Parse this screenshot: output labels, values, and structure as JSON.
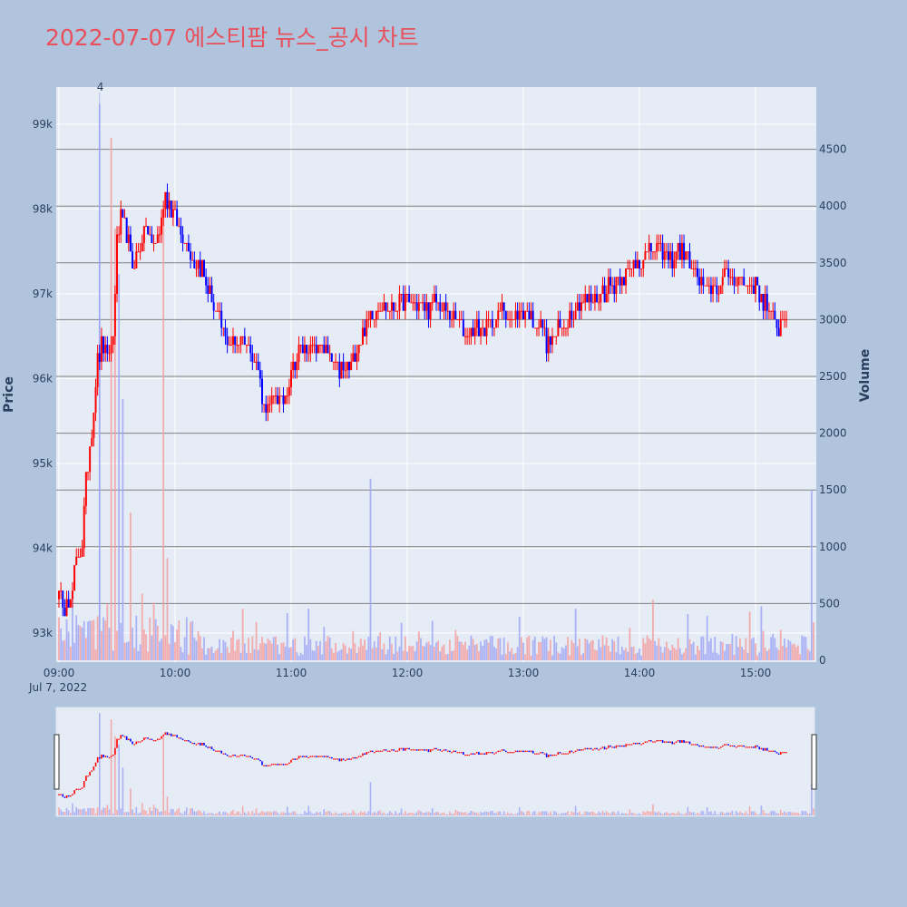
{
  "title": "2022-07-07 에스티팜 뉴스_공시 차트",
  "colors": {
    "background": "#b0c4de",
    "plot_background": "#e5ecf6",
    "up": "#ff0000",
    "down": "#0000ff",
    "title": "#e8505b",
    "grid": "#ffffff",
    "volume_grid": "#808080"
  },
  "chart_data": {
    "type": "candlestick",
    "x_start": "09:00",
    "x_end": "15:30",
    "x_ticks": [
      "09:00",
      "10:00",
      "11:00",
      "12:00",
      "13:00",
      "14:00",
      "15:00"
    ],
    "x_date_label": "Jul 7, 2022",
    "yaxis_price": {
      "title": "Price",
      "range": [
        92700,
        99400
      ],
      "ticks": [
        93000,
        94000,
        95000,
        96000,
        97000,
        98000,
        99000
      ],
      "tick_labels": [
        "93k",
        "94k",
        "95k",
        "96k",
        "97k",
        "98k",
        "99k"
      ]
    },
    "yaxis_volume": {
      "title": "Volume",
      "range": [
        0,
        5000
      ],
      "ticks": [
        0,
        500,
        1000,
        1500,
        2000,
        2500,
        3000,
        3500,
        4000,
        4500
      ],
      "tick_labels": [
        "0",
        "500",
        "1000",
        "1500",
        "2000",
        "2500",
        "3000",
        "3500",
        "4000",
        "4500"
      ]
    },
    "annotation": {
      "text": "4",
      "time": "09:21"
    },
    "price_path": [
      [
        "09:00",
        93600
      ],
      [
        "09:02",
        93200
      ],
      [
        "09:04",
        93500
      ],
      [
        "09:06",
        93300
      ],
      [
        "09:08",
        93700
      ],
      [
        "09:10",
        93900
      ],
      [
        "09:12",
        94100
      ],
      [
        "09:14",
        94800
      ],
      [
        "09:16",
        95200
      ],
      [
        "09:18",
        95700
      ],
      [
        "09:20",
        96200
      ],
      [
        "09:22",
        96400
      ],
      [
        "09:25",
        96200
      ],
      [
        "09:28",
        96500
      ],
      [
        "09:30",
        97600
      ],
      [
        "09:32",
        97900
      ],
      [
        "09:35",
        97700
      ],
      [
        "09:38",
        97300
      ],
      [
        "09:42",
        97600
      ],
      [
        "09:45",
        97800
      ],
      [
        "09:48",
        97600
      ],
      [
        "09:52",
        97700
      ],
      [
        "09:55",
        98200
      ],
      [
        "09:58",
        98000
      ],
      [
        "10:02",
        97800
      ],
      [
        "10:06",
        97600
      ],
      [
        "10:10",
        97400
      ],
      [
        "10:14",
        97300
      ],
      [
        "10:18",
        97000
      ],
      [
        "10:22",
        96700
      ],
      [
        "10:26",
        96500
      ],
      [
        "10:30",
        96400
      ],
      [
        "10:34",
        96500
      ],
      [
        "10:38",
        96400
      ],
      [
        "10:42",
        96200
      ],
      [
        "10:46",
        95700
      ],
      [
        "10:48",
        95600
      ],
      [
        "10:52",
        95800
      ],
      [
        "10:56",
        95700
      ],
      [
        "11:00",
        96100
      ],
      [
        "11:04",
        96300
      ],
      [
        "11:08",
        96400
      ],
      [
        "11:12",
        96300
      ],
      [
        "11:16",
        96400
      ],
      [
        "11:20",
        96200
      ],
      [
        "11:24",
        96100
      ],
      [
        "11:28",
        96100
      ],
      [
        "11:32",
        96200
      ],
      [
        "11:36",
        96500
      ],
      [
        "11:40",
        96700
      ],
      [
        "11:45",
        96900
      ],
      [
        "11:50",
        96800
      ],
      [
        "11:55",
        96900
      ],
      [
        "12:00",
        96900
      ],
      [
        "12:05",
        96900
      ],
      [
        "12:10",
        96800
      ],
      [
        "12:15",
        96900
      ],
      [
        "12:20",
        96800
      ],
      [
        "12:25",
        96700
      ],
      [
        "12:30",
        96500
      ],
      [
        "12:35",
        96600
      ],
      [
        "12:40",
        96600
      ],
      [
        "12:45",
        96700
      ],
      [
        "12:50",
        96800
      ],
      [
        "12:55",
        96700
      ],
      [
        "13:00",
        96800
      ],
      [
        "13:05",
        96700
      ],
      [
        "13:10",
        96600
      ],
      [
        "13:12",
        96400
      ],
      [
        "13:16",
        96500
      ],
      [
        "13:20",
        96600
      ],
      [
        "13:25",
        96800
      ],
      [
        "13:30",
        96900
      ],
      [
        "13:35",
        96900
      ],
      [
        "13:40",
        97000
      ],
      [
        "13:45",
        97100
      ],
      [
        "13:50",
        97200
      ],
      [
        "13:55",
        97300
      ],
      [
        "14:00",
        97400
      ],
      [
        "14:05",
        97500
      ],
      [
        "14:10",
        97500
      ],
      [
        "14:15",
        97400
      ],
      [
        "14:20",
        97500
      ],
      [
        "14:25",
        97400
      ],
      [
        "14:30",
        97200
      ],
      [
        "14:35",
        97000
      ],
      [
        "14:40",
        97100
      ],
      [
        "14:45",
        97200
      ],
      [
        "14:50",
        97200
      ],
      [
        "14:55",
        97100
      ],
      [
        "15:00",
        97100
      ],
      [
        "15:05",
        96900
      ],
      [
        "15:08",
        96700
      ],
      [
        "15:12",
        96600
      ],
      [
        "15:16",
        96800
      ]
    ],
    "volume_spikes": [
      [
        "09:21",
        4900,
        "down"
      ],
      [
        "09:27",
        4600,
        "up"
      ],
      [
        "09:29",
        3800,
        "up"
      ],
      [
        "09:31",
        3400,
        "down"
      ],
      [
        "09:33",
        2300,
        "down"
      ],
      [
        "09:37",
        1300,
        "up"
      ],
      [
        "09:56",
        900,
        "up"
      ],
      [
        "11:41",
        1600,
        "down"
      ],
      [
        "15:29",
        1500,
        "down"
      ],
      [
        "09:54",
        3900,
        "up"
      ]
    ]
  }
}
